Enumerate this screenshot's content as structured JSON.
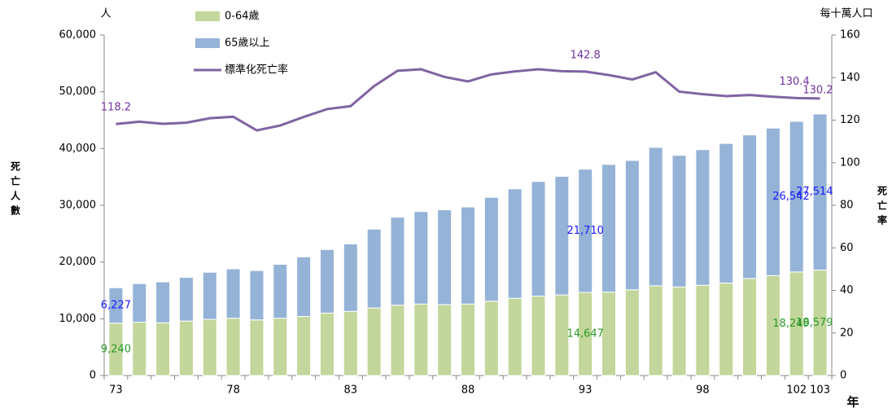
{
  "chart_data": {
    "type": "bar-line",
    "y_unit": "人",
    "y2_unit": "每十萬人口",
    "ylabel": "死亡人數",
    "y2label": "死亡率",
    "xlabel": "年",
    "categories": [
      "73",
      null,
      null,
      null,
      null,
      "78",
      null,
      null,
      null,
      null,
      "83",
      null,
      null,
      null,
      null,
      "88",
      null,
      null,
      null,
      null,
      "93",
      null,
      null,
      null,
      null,
      "98",
      null,
      null,
      null,
      "102",
      "103"
    ],
    "series": [
      {
        "name": "0-64歲",
        "color": "#c3d69b",
        "label_color": "#2a9a2a",
        "values": [
          9240,
          9400,
          9300,
          9600,
          9900,
          10100,
          9800,
          10100,
          10400,
          11000,
          11300,
          11900,
          12400,
          12600,
          12500,
          12600,
          13100,
          13600,
          14000,
          14200,
          14647,
          14700,
          15100,
          15800,
          15600,
          15900,
          16300,
          17100,
          17600,
          18249,
          18579
        ],
        "value_labels": [
          "9,240",
          null,
          null,
          null,
          null,
          null,
          null,
          null,
          null,
          null,
          null,
          null,
          null,
          null,
          null,
          null,
          null,
          null,
          null,
          null,
          "14,647",
          null,
          null,
          null,
          null,
          null,
          null,
          null,
          null,
          "18,249",
          "18,579"
        ]
      },
      {
        "name": "65歲以上",
        "color": "#95b3d7",
        "label_color": "#1a1aff",
        "values": [
          6227,
          6800,
          7200,
          7700,
          8300,
          8700,
          8700,
          9500,
          10500,
          11200,
          11900,
          13900,
          15500,
          16300,
          16700,
          17100,
          18300,
          19300,
          20200,
          20900,
          21710,
          22500,
          22800,
          24400,
          23200,
          23900,
          24600,
          25300,
          26000,
          26542,
          27514
        ],
        "value_labels": [
          "6,227",
          null,
          null,
          null,
          null,
          null,
          null,
          null,
          null,
          null,
          null,
          null,
          null,
          null,
          null,
          null,
          null,
          null,
          null,
          null,
          "21,710",
          null,
          null,
          null,
          null,
          null,
          null,
          null,
          null,
          "26,542",
          "27,514"
        ]
      },
      {
        "name": "標準化死亡率",
        "color": "#8064a2",
        "label_color": "#7030a0",
        "axis": "y2",
        "values": [
          118.2,
          119.3,
          118.3,
          118.8,
          120.9,
          121.6,
          115.2,
          117.5,
          121.5,
          125.2,
          126.6,
          136.0,
          143.2,
          143.9,
          140.3,
          138.2,
          141.5,
          142.9,
          143.9,
          143.0,
          142.8,
          141.2,
          139.1,
          142.5,
          133.4,
          132.2,
          131.3,
          131.8,
          131.0,
          130.4,
          130.2
        ],
        "value_labels": [
          "118.2",
          null,
          null,
          null,
          null,
          null,
          null,
          null,
          null,
          null,
          null,
          null,
          null,
          null,
          null,
          null,
          null,
          null,
          null,
          null,
          "142.8",
          null,
          null,
          null,
          null,
          null,
          null,
          null,
          null,
          "130.4",
          "130.2"
        ]
      }
    ],
    "ylim": [
      0,
      60000
    ],
    "yticks": [
      0,
      {
        "value": 10000,
        "label": "10,000"
      },
      {
        "value": 20000,
        "label": "20,000"
      },
      {
        "value": 30000,
        "label": "30,000"
      },
      {
        "value": 40000,
        "label": "40,000"
      },
      {
        "value": 50000,
        "label": "50,000"
      },
      {
        "value": 60000,
        "label": "60,000"
      }
    ],
    "y2lim": [
      0,
      160
    ],
    "y2ticks": [
      0,
      20,
      40,
      60,
      80,
      100,
      120,
      140,
      160
    ]
  }
}
